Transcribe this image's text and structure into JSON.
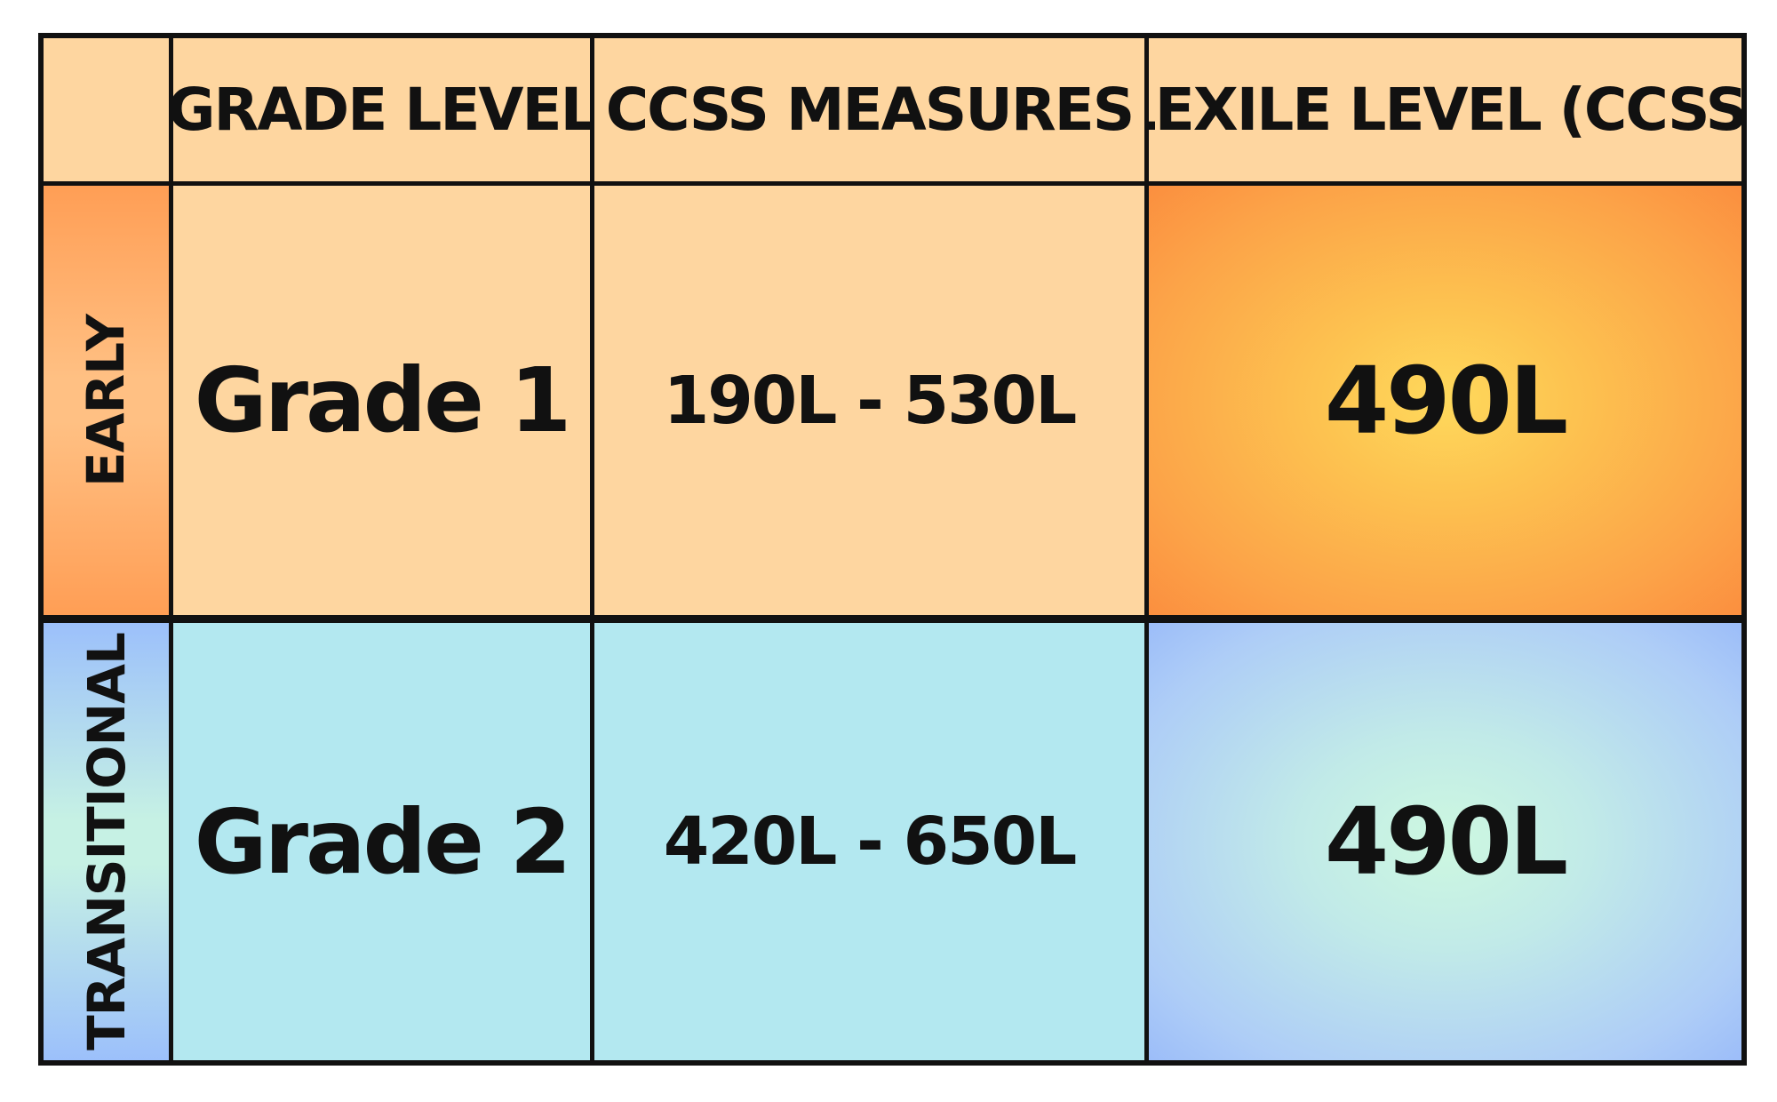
{
  "table": {
    "headers": {
      "corner": "",
      "grade_level": "GRADE LEVEL",
      "ccss_measures": "CCSS MEASURES",
      "lexile_level": "LEXILE LEVEL (CCSS)"
    },
    "rows": [
      {
        "stage": "EARLY",
        "grade": "Grade 1",
        "ccss_range": "190L - 530L",
        "lexile": "490L",
        "row_color": "#fed6a0",
        "highlight_color": "#fdc350"
      },
      {
        "stage": "TRANSITIONAL",
        "grade": "Grade 2",
        "ccss_range": "420L - 650L",
        "lexile": "490L",
        "row_color": "#b3e8f0",
        "highlight_color": "#c1eae8"
      }
    ]
  }
}
